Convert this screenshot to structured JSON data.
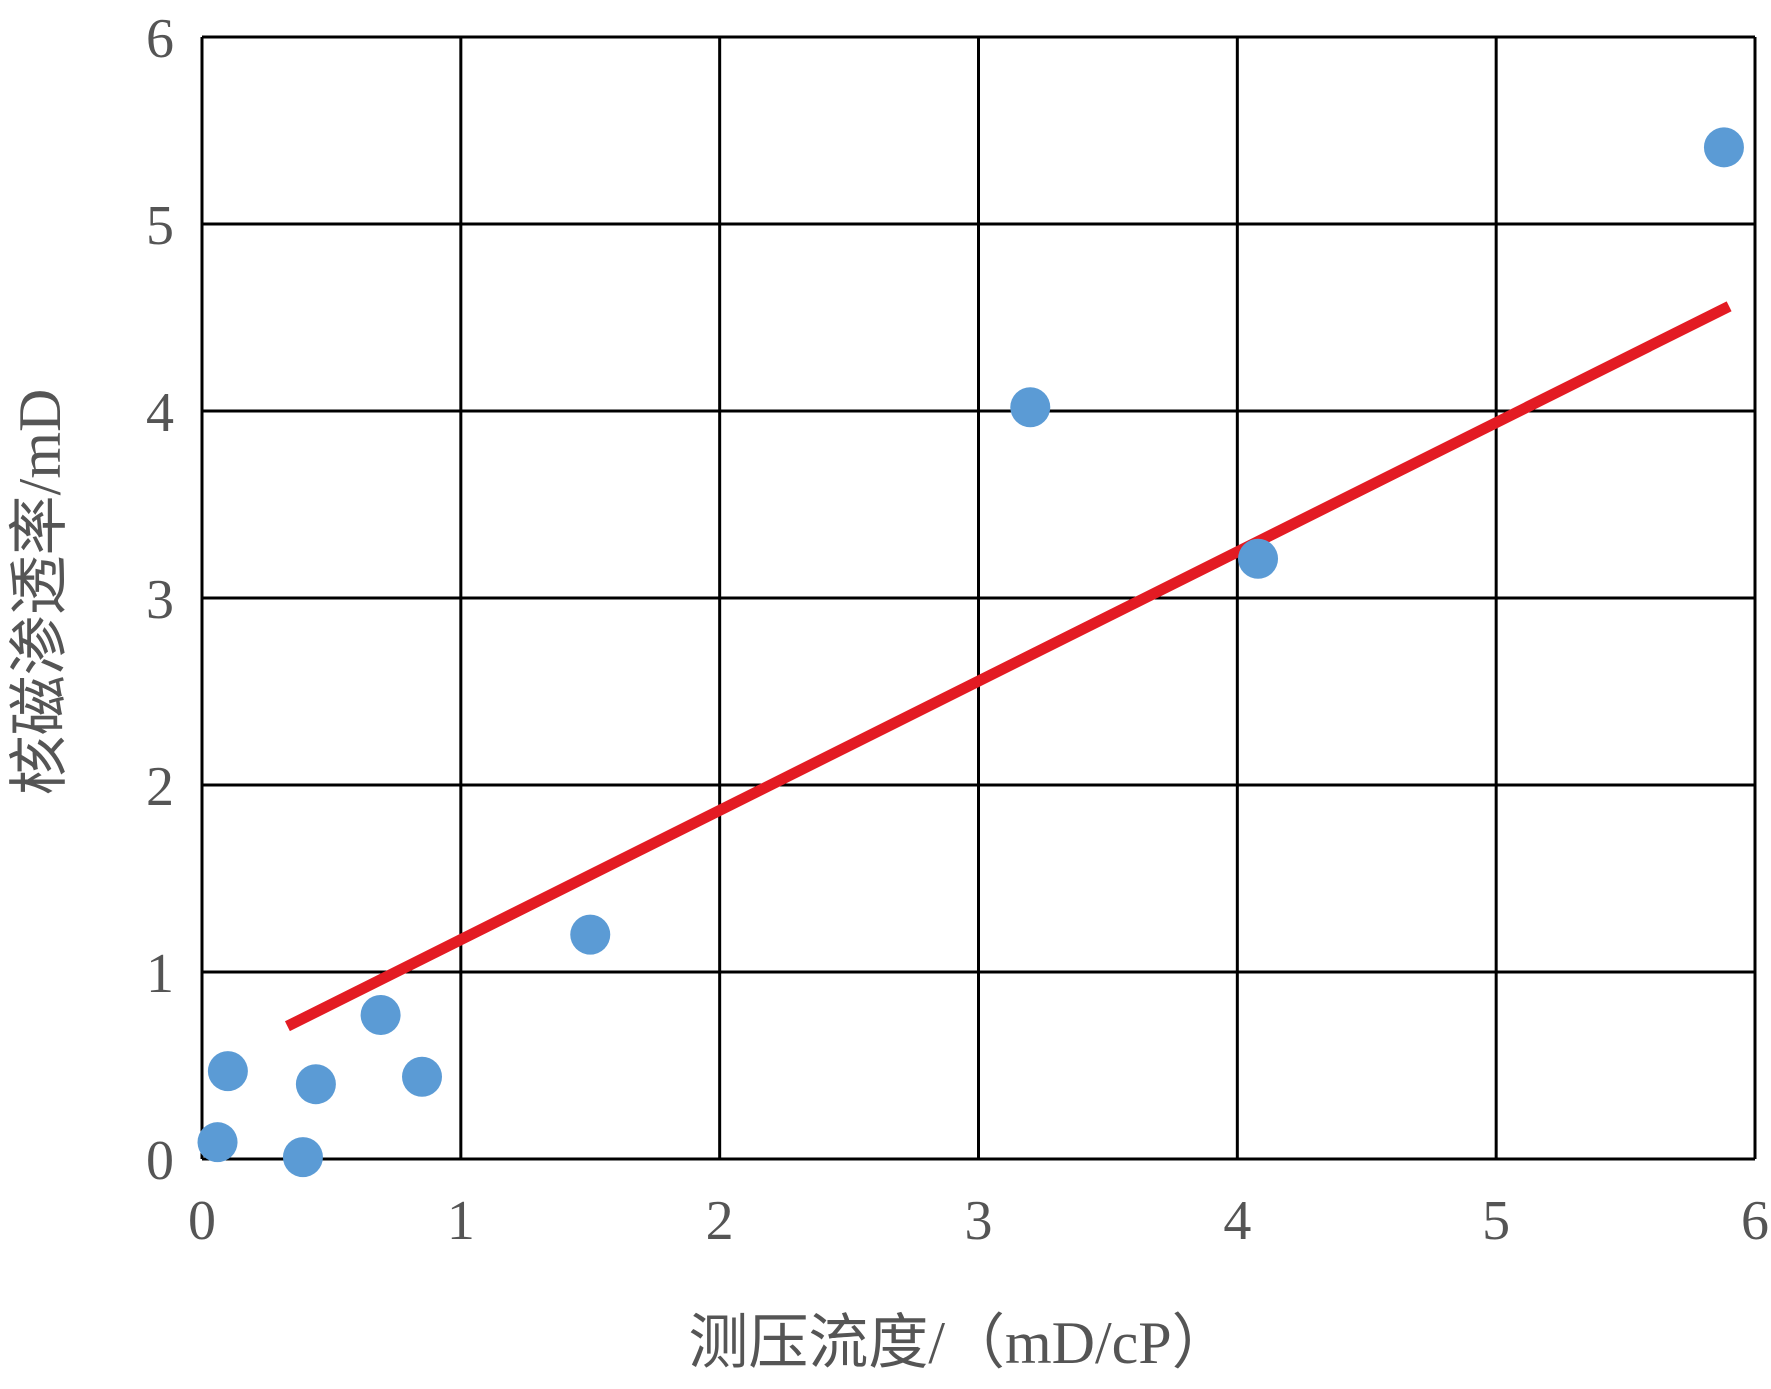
{
  "chart_data": {
    "type": "scatter",
    "xlabel": "测压流度/（mD/cP）",
    "ylabel": "核磁渗透率/mD",
    "xlim": [
      0,
      6
    ],
    "ylim": [
      0,
      6
    ],
    "x_ticks": [
      "0",
      "1",
      "2",
      "3",
      "4",
      "5",
      "6"
    ],
    "y_ticks": [
      "0",
      "1",
      "2",
      "3",
      "4",
      "5",
      "6"
    ],
    "grid": true,
    "legend": "none",
    "series": [
      {
        "points": [
          {
            "x": 0.06,
            "y": 0.09
          },
          {
            "x": 0.1,
            "y": 0.47
          },
          {
            "x": 0.39,
            "y": 0.01
          },
          {
            "x": 0.44,
            "y": 0.4
          },
          {
            "x": 0.69,
            "y": 0.77
          },
          {
            "x": 0.85,
            "y": 0.44
          },
          {
            "x": 1.5,
            "y": 1.2
          },
          {
            "x": 3.2,
            "y": 4.02
          },
          {
            "x": 4.08,
            "y": 3.21
          },
          {
            "x": 5.88,
            "y": 5.41
          }
        ],
        "color": "#5b9bd5"
      }
    ],
    "trendline": {
      "x_start": 0.33,
      "y_start": 0.71,
      "x_end": 5.9,
      "y_end": 4.56,
      "color": "#e31b23"
    },
    "grid_color": "#000000"
  }
}
